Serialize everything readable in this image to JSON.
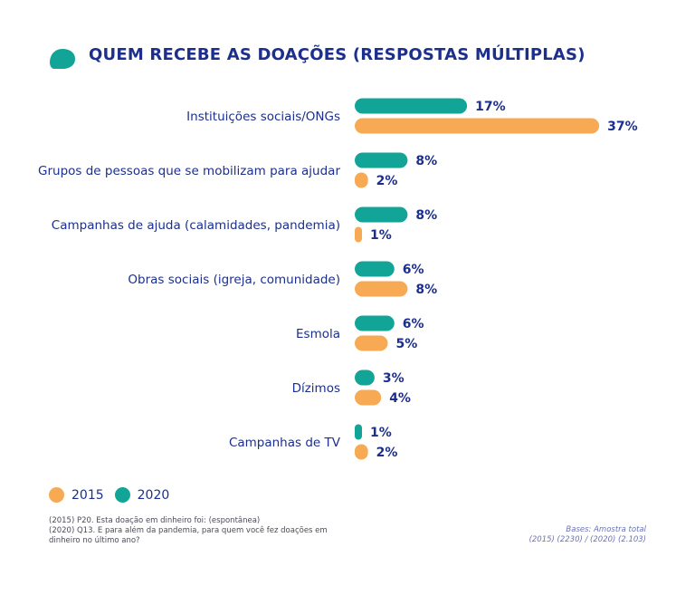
{
  "title": "QUEM RECEBE AS DOAÇÕES (RESPOSTAS MÚLTIPLAS)",
  "colors": {
    "s2020": "#12a597",
    "s2015": "#f7a954",
    "text": "#1c2f8c"
  },
  "chart_data": {
    "type": "bar",
    "orientation": "horizontal",
    "categories": [
      "Instituições sociais/ONGs",
      "Grupos de pessoas que se mobilizam para ajudar",
      "Campanhas de ajuda (calamidades, pandemia)",
      "Obras sociais (igreja, comunidade)",
      "Esmola",
      "Dízimos",
      "Campanhas de TV"
    ],
    "series": [
      {
        "name": "2020",
        "values": [
          17,
          8,
          8,
          6,
          6,
          3,
          1
        ],
        "labels": [
          "17%",
          "8%",
          "8%",
          "6%",
          "6%",
          "3%",
          "1%"
        ]
      },
      {
        "name": "2015",
        "values": [
          37,
          2,
          1,
          8,
          5,
          4,
          2
        ],
        "labels": [
          "37%",
          "2%",
          "1%",
          "8%",
          "5%",
          "4%",
          "2%"
        ]
      }
    ],
    "legend": [
      "2015",
      "2020"
    ],
    "legend_position": "bottom-left"
  },
  "footnote": [
    "(2015) P20. Esta doação em dinheiro foi: (espontânea)",
    "(2020) Q13. E para além da pandemia, para quem você fez doações em dinheiro no último ano?"
  ],
  "bases": [
    "Bases: Amostra total",
    "(2015) (2230) / (2020) (2.103)"
  ]
}
